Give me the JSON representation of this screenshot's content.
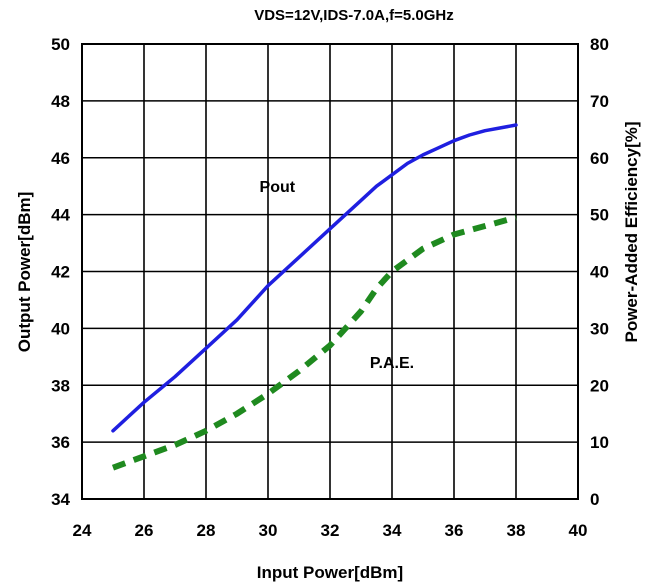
{
  "chart_data": {
    "type": "line",
    "title": "VDS=12V,IDS-7.0A,f=5.0GHz",
    "xlabel": "Input Power[dBm]",
    "ylabel": "Output Power[dBm]",
    "y2label": "Power-Added Efficiency[%]",
    "xlim": [
      24,
      40
    ],
    "ylim": [
      34,
      50
    ],
    "y2lim": [
      0,
      80
    ],
    "xticks": [
      24,
      26,
      28,
      30,
      32,
      34,
      36,
      38,
      40
    ],
    "yticks": [
      34,
      36,
      38,
      40,
      42,
      44,
      46,
      48,
      50
    ],
    "y2ticks": [
      0,
      10,
      20,
      30,
      40,
      50,
      60,
      70,
      80
    ],
    "grid": true,
    "series": [
      {
        "name": "Pout",
        "axis": "left",
        "color": "#1f1fe0",
        "style": "solid",
        "x": [
          25,
          26,
          27,
          28,
          29,
          30,
          31,
          32,
          33,
          33.5,
          34,
          34.5,
          35,
          35.5,
          36,
          36.5,
          37,
          37.5,
          38
        ],
        "values": [
          36.4,
          37.4,
          38.3,
          39.3,
          40.3,
          41.5,
          42.5,
          43.5,
          44.5,
          45.0,
          45.4,
          45.8,
          46.1,
          46.35,
          46.6,
          46.8,
          46.95,
          47.05,
          47.15
        ]
      },
      {
        "name": "P.A.E.",
        "axis": "right",
        "color": "#1f8a1f",
        "style": "dashed",
        "x": [
          25,
          26,
          27,
          28,
          29,
          30,
          31,
          32,
          32.5,
          33,
          33.5,
          34,
          35,
          36,
          37,
          38
        ],
        "values": [
          5.5,
          7.5,
          9.5,
          12,
          15,
          18.5,
          22.5,
          27,
          30,
          33,
          37,
          40,
          44,
          46.5,
          48,
          49.5
        ]
      }
    ],
    "annotations": [
      {
        "text": "Pout",
        "x": 30.3,
        "y": 44.8,
        "axis": "left"
      },
      {
        "text": "P.A.E.",
        "x": 34.0,
        "y": 23.0,
        "axis": "right"
      }
    ]
  }
}
